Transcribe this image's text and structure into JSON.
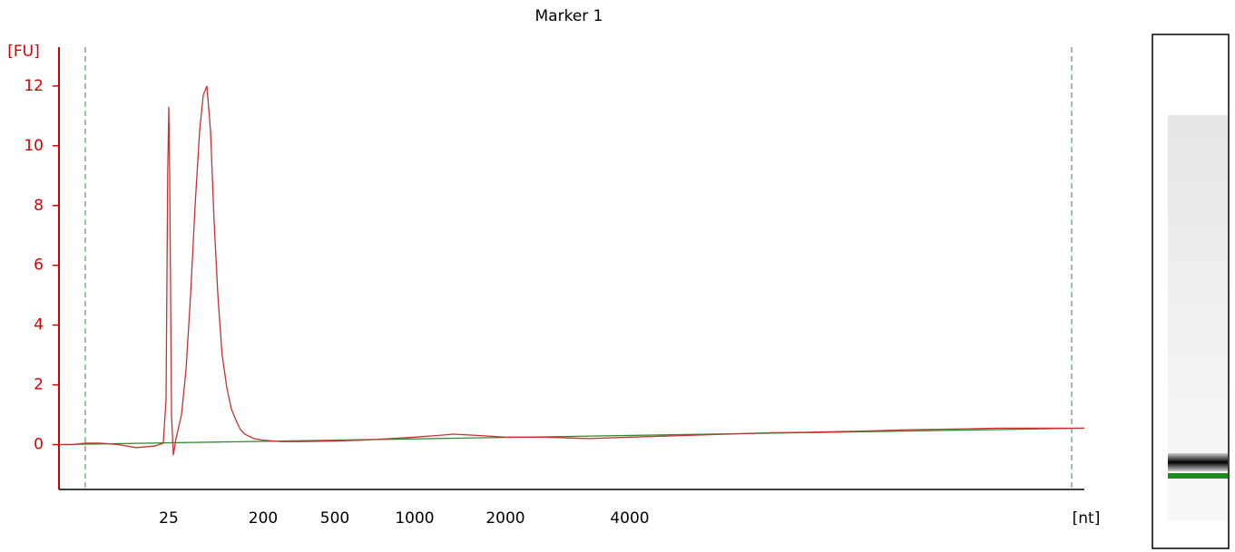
{
  "chart_data": {
    "type": "line",
    "title": "Marker 1",
    "y_label": "[FU]",
    "x_label": "[nt]",
    "xlim": [
      15,
      10000
    ],
    "xticks": [
      25,
      200,
      500,
      1000,
      2000,
      4000
    ],
    "ylim": [
      -1.5,
      13.3
    ],
    "yticks": [
      0,
      2,
      4,
      6,
      8,
      10,
      12
    ],
    "series": [
      {
        "color": "#c83232",
        "x": [
          15,
          16.2,
          17.4,
          18.7,
          20.4,
          22.0,
          23.7,
          24.5,
          24.75,
          24.9,
          25,
          26.7,
          30,
          33.4,
          38.5,
          48.6,
          57,
          65.4,
          73.8,
          82.2,
          89,
          95.7,
          102.4,
          109,
          116,
          124,
          132.7,
          141,
          150,
          158,
          166,
          183,
          200,
          276,
          352,
          500,
          676,
          847,
          1000,
          1230,
          1430,
          1730,
          2000,
          2628,
          3358,
          4000,
          4670,
          5270,
          5870,
          6470,
          7070,
          7670,
          8270,
          8870,
          9470,
          10000
        ],
        "values": [
          0.0,
          0.0,
          0.05,
          0.05,
          0.0,
          -0.1,
          -0.05,
          0.05,
          1.5,
          9,
          11.3,
          9,
          1,
          -0.35,
          0.2,
          1.0,
          2.5,
          5,
          8,
          10.5,
          11.7,
          12.0,
          10.5,
          7.5,
          5,
          3,
          1.9,
          1.2,
          0.8,
          0.5,
          0.35,
          0.2,
          0.15,
          0.1,
          0.1,
          0.12,
          0.15,
          0.2,
          0.25,
          0.3,
          0.35,
          0.3,
          0.25,
          0.25,
          0.2,
          0.25,
          0.3,
          0.35,
          0.4,
          0.42,
          0.45,
          0.5,
          0.52,
          0.55,
          0.55,
          0.55
        ]
      },
      {
        "color": "#2e8b2e",
        "x": [
          15,
          10000
        ],
        "values": [
          0.0,
          0.55
        ]
      }
    ]
  }
}
